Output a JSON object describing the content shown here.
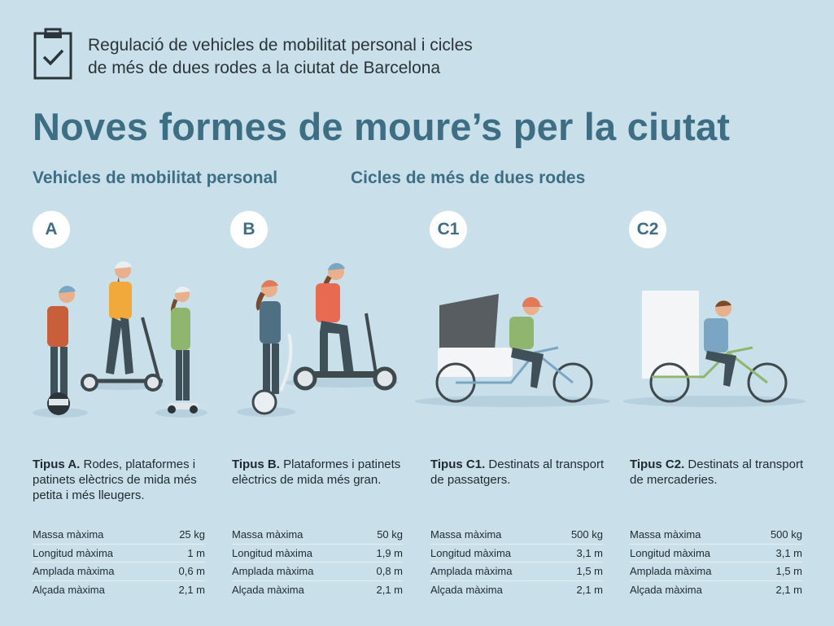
{
  "header": {
    "icon": "clipboard-check-icon",
    "subtitle_line1": "Regulació de vehicles de mobilitat personal i cicles",
    "subtitle_line2": "de més de dues rodes a la ciutat de Barcelona",
    "title": "Noves formes de moure’s per la ciutat"
  },
  "sections": {
    "personal": "Vehicles de mobilitat personal",
    "cycles": "Cicles de més de dues rodes"
  },
  "colors": {
    "accent": "#3d6e83",
    "background": "#c9e0eb"
  },
  "types": [
    {
      "badge": "A",
      "desc_bold": "Tipus A.",
      "desc_text": " Rodes, plataformes i patinets elèctrics de mida més petita i més lleugers.",
      "specs": [
        {
          "label": "Massa màxima",
          "value": "25 kg"
        },
        {
          "label": "Longitud màxima",
          "value": "1 m"
        },
        {
          "label": "Amplada màxima",
          "value": "0,6 m"
        },
        {
          "label": "Alçada màxima",
          "value": "2,1 m"
        }
      ]
    },
    {
      "badge": "B",
      "desc_bold": "Tipus B.",
      "desc_text": " Plataformes i patinets elèctrics de mida més gran.",
      "specs": [
        {
          "label": "Massa màxima",
          "value": "50 kg"
        },
        {
          "label": "Longitud màxima",
          "value": "1,9 m"
        },
        {
          "label": "Amplada màxima",
          "value": "0,8 m"
        },
        {
          "label": "Alçada màxima",
          "value": "2,1 m"
        }
      ]
    },
    {
      "badge": "C1",
      "desc_bold": "Tipus C1.",
      "desc_text": " Destinats al transport de passatgers.",
      "specs": [
        {
          "label": "Massa màxima",
          "value": "500 kg"
        },
        {
          "label": "Longitud màxima",
          "value": "3,1 m"
        },
        {
          "label": "Amplada màxima",
          "value": "1,5 m"
        },
        {
          "label": "Alçada màxima",
          "value": "2,1 m"
        }
      ]
    },
    {
      "badge": "C2",
      "desc_bold": "Tipus C2.",
      "desc_text": " Destinats al transport de mercaderies.",
      "specs": [
        {
          "label": "Massa màxima",
          "value": "500 kg"
        },
        {
          "label": "Longitud màxima",
          "value": "3,1 m"
        },
        {
          "label": "Amplada màxima",
          "value": "1,5 m"
        },
        {
          "label": "Alçada màxima",
          "value": "2,1 m"
        }
      ]
    }
  ]
}
